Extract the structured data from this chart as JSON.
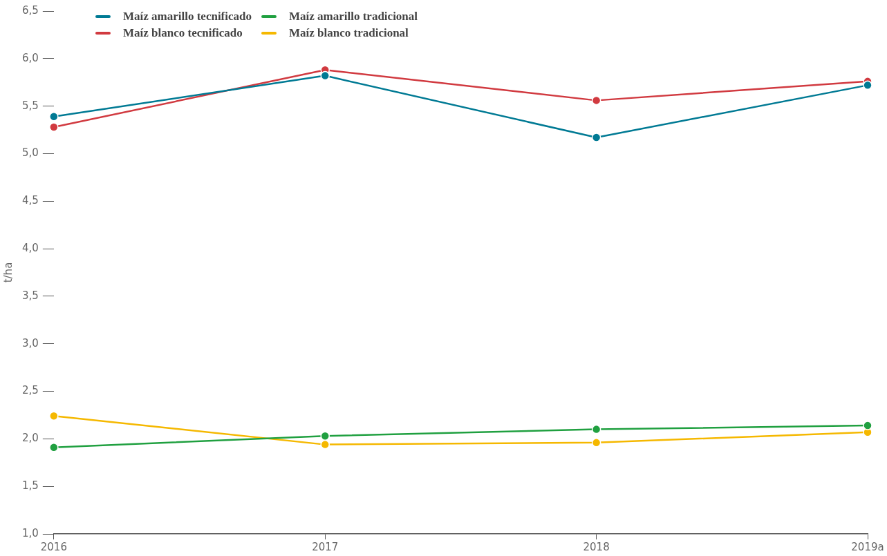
{
  "chart_data": {
    "type": "line",
    "ylabel": "t/ha",
    "categories": [
      "2016",
      "2017",
      "2018",
      "2019a"
    ],
    "ylim": [
      1,
      6.5
    ],
    "yticks": [
      {
        "value": 1,
        "label": "1,0"
      },
      {
        "value": 1.5,
        "label": "1,5"
      },
      {
        "value": 2,
        "label": "2,0"
      },
      {
        "value": 2.5,
        "label": "2,5"
      },
      {
        "value": 3,
        "label": "3,0"
      },
      {
        "value": 3.5,
        "label": "3,5"
      },
      {
        "value": 4,
        "label": "4,0"
      },
      {
        "value": 4.5,
        "label": "4,5"
      },
      {
        "value": 5,
        "label": "5,0"
      },
      {
        "value": 5.5,
        "label": "5,5"
      },
      {
        "value": 6,
        "label": "6,0"
      },
      {
        "value": 6.5,
        "label": "6,5"
      }
    ],
    "grid": false,
    "legend": "top left",
    "marker": "circle",
    "line_style": "solid",
    "series": [
      {
        "name": "Maíz amarillo tecnificado",
        "color": "#007a94",
        "values": [
          5.39,
          5.82,
          5.17,
          5.72
        ]
      },
      {
        "name": "Maíz blanco tecnificado",
        "color": "#d13a40",
        "values": [
          5.28,
          5.88,
          5.56,
          5.76
        ]
      },
      {
        "name": "Maíz amarillo tradicional",
        "color": "#20a040",
        "values": [
          1.91,
          2.03,
          2.1,
          2.14
        ]
      },
      {
        "name": "Maíz blanco tradicional",
        "color": "#f5b800",
        "values": [
          2.24,
          1.94,
          1.96,
          2.07
        ]
      }
    ]
  }
}
